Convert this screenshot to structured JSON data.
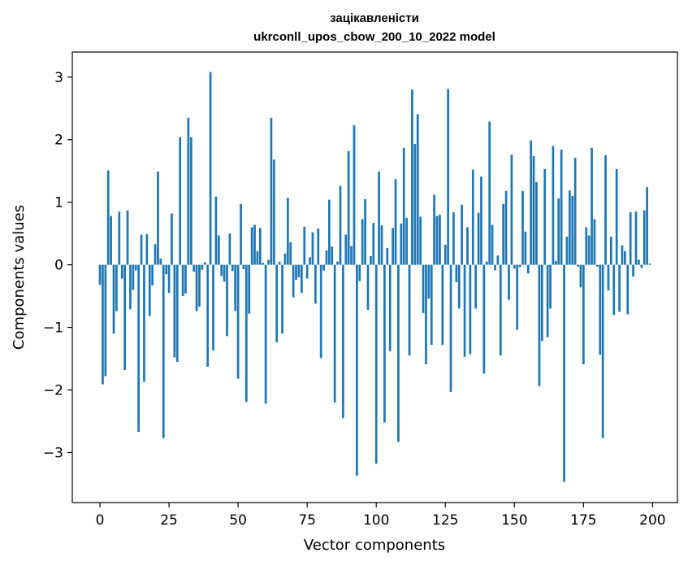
{
  "chart_data": {
    "type": "bar",
    "title": "зацікавленісти",
    "subtitle": "ukrconll_upos_cbow_200_10_2022 model",
    "xlabel": "Vector components",
    "ylabel": "Components values",
    "xlim": [
      -10,
      209
    ],
    "ylim": [
      -3.8,
      3.4
    ],
    "x_ticks": [
      0,
      25,
      50,
      75,
      100,
      125,
      150,
      175,
      200
    ],
    "y_ticks": [
      -3,
      -2,
      -1,
      0,
      1,
      2,
      3
    ],
    "x_tick_labels": [
      "0",
      "25",
      "50",
      "75",
      "100",
      "125",
      "150",
      "175",
      "200"
    ],
    "y_tick_labels": [
      "−3",
      "−2",
      "−1",
      "0",
      "1",
      "2",
      "3"
    ],
    "grid": false,
    "bar_color": "#1f77b4",
    "values": [
      -0.32,
      -1.91,
      -1.78,
      1.51,
      0.78,
      -1.1,
      -0.74,
      0.85,
      -0.22,
      -1.68,
      0.87,
      -0.71,
      -0.4,
      -0.09,
      -2.67,
      0.48,
      -1.87,
      0.49,
      -0.82,
      -0.33,
      0.33,
      1.49,
      0.1,
      -2.77,
      -0.15,
      -0.45,
      0.82,
      -1.48,
      -1.55,
      2.04,
      -0.5,
      -0.46,
      2.35,
      2.04,
      -0.11,
      -0.74,
      -0.67,
      -0.08,
      0.04,
      -1.63,
      3.08,
      -1.37,
      1.09,
      0.47,
      -0.18,
      -0.27,
      -1.14,
      0.5,
      -0.1,
      -0.74,
      -1.82,
      0.97,
      -0.07,
      -2.19,
      -0.78,
      0.6,
      0.64,
      0.22,
      0.59,
      0.03,
      -2.22,
      0.08,
      2.35,
      1.68,
      -1.24,
      0.05,
      -1.1,
      0.18,
      1.07,
      0.36,
      -0.52,
      -0.24,
      -0.2,
      -0.45,
      0.61,
      -0.22,
      0.12,
      0.52,
      -0.62,
      0.58,
      -1.49,
      -0.09,
      0.23,
      1.04,
      0.29,
      -2.2,
      0.05,
      1.26,
      -2.45,
      0.48,
      1.82,
      0.3,
      2.23,
      -3.37,
      -0.26,
      0.73,
      1.05,
      -0.72,
      0.14,
      0.67,
      -3.18,
      1.49,
      0.63,
      -2.52,
      0.27,
      -1.38,
      0.59,
      1.37,
      -2.83,
      0.66,
      1.87,
      0.75,
      -1.45,
      2.8,
      1.93,
      2.41,
      0.77,
      -0.77,
      -1.59,
      -0.54,
      -1.28,
      1.12,
      0.78,
      0.8,
      -1.28,
      0.32,
      2.81,
      -2.03,
      0.84,
      -0.28,
      -0.7,
      0.96,
      -1.47,
      0.6,
      -1.43,
      1.52,
      -0.7,
      0.83,
      1.41,
      -1.74,
      0.05,
      2.29,
      0.64,
      -0.09,
      0.15,
      -1.45,
      0.97,
      1.18,
      -0.56,
      1.76,
      -0.06,
      -1.04,
      -0.04,
      1.18,
      0.53,
      -0.14,
      1.99,
      1.74,
      1.32,
      -1.94,
      -1.22,
      1.53,
      -1.16,
      -0.7,
      1.9,
      0.06,
      1.06,
      1.84,
      -3.47,
      0.45,
      1.19,
      1.1,
      1.71,
      -0.03,
      -0.36,
      -1.59,
      0.6,
      0.47,
      1.87,
      0.73,
      -0.03,
      -1.44,
      -2.77,
      1.75,
      -0.41,
      0.45,
      -0.8,
      1.53,
      -0.75,
      0.31,
      0.22,
      -0.79,
      0.84,
      -0.19,
      0.85,
      0.08,
      -0.05,
      0.87,
      1.24,
      0.02
    ]
  }
}
